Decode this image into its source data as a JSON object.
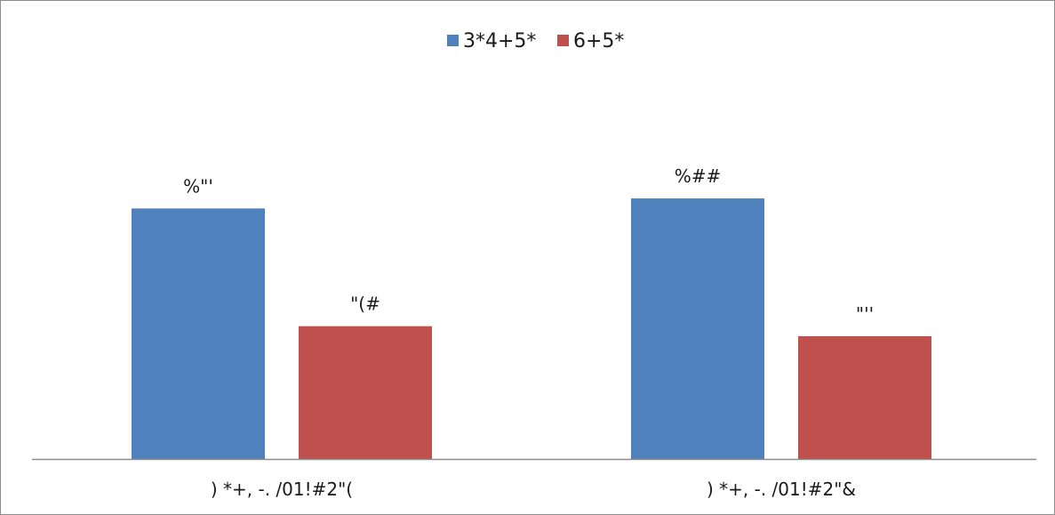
{
  "chart_data": {
    "type": "bar",
    "categories": [
      ") *+, -. /01!#2\"(",
      ") *+, -. /01!#2\"&"
    ],
    "series": [
      {
        "name": "3*4+5*",
        "color": "#4f81bd",
        "values": [
          100,
          104
        ],
        "data_labels": [
          "%\"'",
          "%##"
        ]
      },
      {
        "name": "6+5*",
        "color": "#c0504d",
        "values": [
          53,
          49
        ],
        "data_labels": [
          "\"(#",
          "\"''"
        ]
      }
    ],
    "ylim": [
      0,
      158
    ],
    "grid": false,
    "legend_position": "top-center",
    "axis_color": "#8c8c8c"
  }
}
